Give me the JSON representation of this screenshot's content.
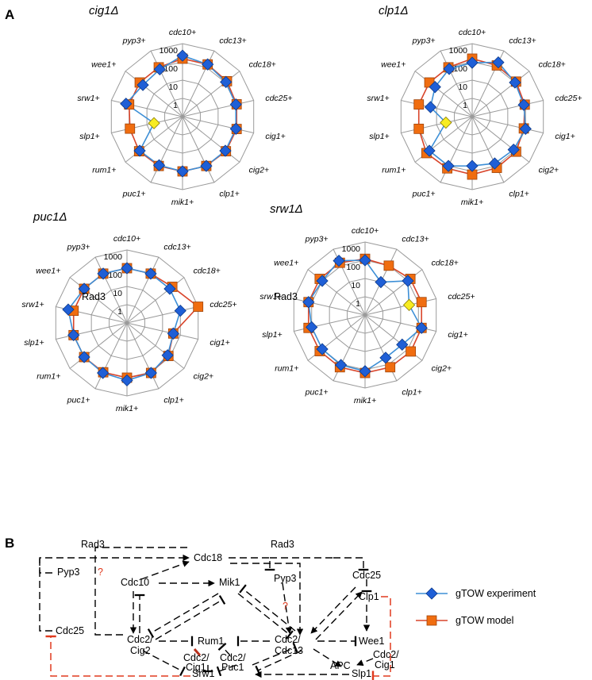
{
  "panels": {
    "a": "A",
    "b": "B"
  },
  "genes": [
    "cdc10+",
    "cdc13+",
    "cdc18+",
    "cdc25+",
    "cig1+",
    "cig2+",
    "clp1+",
    "mik1+",
    "puc1+",
    "rum1+",
    "slp1+",
    "srw1+",
    "wee1+",
    "pyp3+"
  ],
  "colors": {
    "experiment": "#1f5fd6",
    "experiment_line": "#3d8fd6",
    "model": "#f06d10",
    "model_line": "#d9452b",
    "yellow": "#f7ec22",
    "grid": "#9a9a9a",
    "red_edge": "#e03a1e"
  },
  "chart_data": [
    {
      "type": "radar",
      "title": "cig1Δ",
      "scale": "log",
      "range": [
        1,
        1000
      ],
      "ticks": [
        "1",
        "10",
        "100",
        "1000"
      ],
      "axes": [
        "cdc10+",
        "cdc13+",
        "cdc18+",
        "cdc25+",
        "cig1+",
        "cig2+",
        "clp1+",
        "mik1+",
        "puc1+",
        "rum1+",
        "slp1+",
        "srw1+",
        "wee1+",
        "pyp3+"
      ],
      "series": [
        {
          "name": "gTOW experiment",
          "values": [
            220,
            150,
            110,
            100,
            100,
            100,
            100,
            100,
            90,
            100,
            4,
            150,
            60,
            75
          ],
          "highlight": [
            10
          ]
        },
        {
          "name": "gTOW model",
          "values": [
            150,
            150,
            130,
            110,
            110,
            110,
            100,
            100,
            100,
            110,
            90,
            100,
            100,
            100
          ]
        }
      ]
    },
    {
      "type": "radar",
      "title": "clp1Δ",
      "scale": "log",
      "range": [
        1,
        1000
      ],
      "ticks": [
        "1",
        "10",
        "100",
        "1000"
      ],
      "axes": [
        "cdc10+",
        "cdc13+",
        "cdc18+",
        "cdc25+",
        "cig1+",
        "cig2+",
        "clp1+",
        "mik1+",
        "puc1+",
        "rum1+",
        "slp1+",
        "srw1+",
        "wee1+",
        "pyp3+"
      ],
      "series": [
        {
          "name": "gTOW experiment",
          "values": [
            90,
            200,
            100,
            80,
            100,
            80,
            70,
            50,
            100,
            100,
            3,
            22,
            40,
            80
          ],
          "highlight": [
            10
          ]
        },
        {
          "name": "gTOW model",
          "values": [
            150,
            130,
            120,
            90,
            80,
            120,
            130,
            150,
            140,
            160,
            100,
            100,
            100,
            100
          ]
        }
      ]
    },
    {
      "type": "radar",
      "title": "puc1Δ",
      "scale": "log",
      "range": [
        1,
        1000
      ],
      "ticks": [
        "1",
        "10",
        "100",
        "1000"
      ],
      "axes": [
        "cdc10+",
        "cdc13+",
        "cdc18+",
        "cdc25+",
        "cig1+",
        "cig2+",
        "clp1+",
        "mik1+",
        "puc1+",
        "rum1+",
        "slp1+",
        "srw1+",
        "wee1+",
        "pyp3+"
      ],
      "series": [
        {
          "name": "gTOW experiment",
          "values": [
            100,
            100,
            100,
            100,
            40,
            70,
            110,
            140,
            110,
            100,
            100,
            200,
            100,
            100
          ],
          "highlight": []
        },
        {
          "name": "gTOW model",
          "values": [
            100,
            100,
            150,
            1000,
            40,
            80,
            110,
            100,
            100,
            100,
            100,
            100,
            100,
            100
          ]
        }
      ]
    },
    {
      "type": "radar",
      "title": "srw1Δ",
      "scale": "log",
      "range": [
        1,
        1000
      ],
      "ticks": [
        "1",
        "10",
        "100",
        "1000"
      ],
      "axes": [
        "cdc10+",
        "cdc13+",
        "cdc18+",
        "cdc25+",
        "cig1+",
        "cig2+",
        "clp1+",
        "mik1+",
        "puc1+",
        "rum1+",
        "slp1+",
        "srw1+",
        "wee1+",
        "pyp3+"
      ],
      "series": [
        {
          "name": "gTOW experiment",
          "values": [
            100,
            10,
            100,
            30,
            150,
            40,
            40,
            120,
            110,
            100,
            100,
            150,
            100,
            200
          ],
          "highlight": [
            3
          ],
          "highlight_label": "10"
        },
        {
          "name": "gTOW model",
          "values": [
            120,
            100,
            150,
            150,
            150,
            160,
            150,
            150,
            150,
            150,
            150,
            150,
            150,
            150
          ]
        }
      ]
    }
  ],
  "legend": {
    "experiment": "gTOW experiment",
    "model": "gTOW model"
  },
  "network": {
    "nodes": {
      "rad3_left": "Rad3",
      "rad3_right": "Rad3",
      "cdc18": "Cdc18",
      "cdc10": "Cdc10",
      "mik1": "Mik1",
      "pyp3_top": "Pyp3",
      "cdc25_top": "Cdc25",
      "clp1": "Clp1",
      "q1": "?",
      "q2": "?",
      "pyp3_left": "Pyp3",
      "cdc25_left": "Cdc25",
      "cdc2cig2_a": "Cdc2/",
      "cdc2cig2_b": "Cig2",
      "rum1": "Rum1",
      "cdc2cdc13_a": "Cdc2/",
      "cdc2cdc13_b": "Cdc13",
      "wee1": "Wee1",
      "cdc2cig1_a": "Cdc2/",
      "cdc2cig1_b": "Cig1",
      "cdc2puc1_a": "Cdc2/",
      "cdc2puc1_b": "Puc1",
      "apc": "APC",
      "cdc2cig1r_a": "Cdc2/",
      "cdc2cig1r_b": "Cig1",
      "srw1": "Srw1",
      "slp1": "Slp1"
    }
  }
}
